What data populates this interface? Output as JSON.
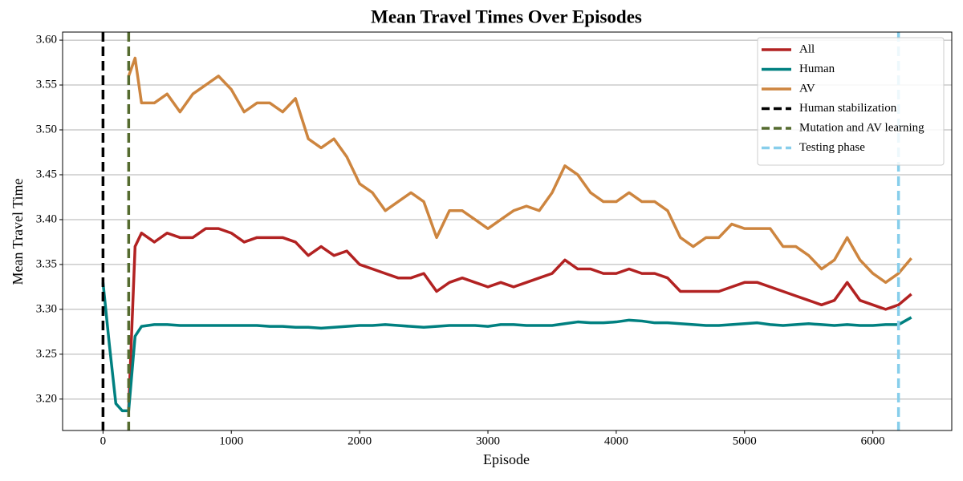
{
  "chart_data": {
    "type": "line",
    "title": "Mean Travel Times Over Episodes",
    "xlabel": "Episode",
    "ylabel": "Mean Travel Time",
    "x": [
      0,
      50,
      100,
      150,
      200,
      250,
      300,
      400,
      500,
      600,
      700,
      800,
      900,
      1000,
      1100,
      1200,
      1300,
      1400,
      1500,
      1600,
      1700,
      1800,
      1900,
      2000,
      2100,
      2200,
      2300,
      2400,
      2500,
      2600,
      2700,
      2800,
      2900,
      3000,
      3100,
      3200,
      3300,
      3400,
      3500,
      3600,
      3700,
      3800,
      3900,
      4000,
      4100,
      4200,
      4300,
      4400,
      4500,
      4600,
      4700,
      4800,
      4900,
      5000,
      5100,
      5200,
      5300,
      5400,
      5500,
      5600,
      5700,
      5800,
      5900,
      6000,
      6100,
      6200,
      6300
    ],
    "series": [
      {
        "name": "All",
        "color": "#b22222",
        "values": [
          null,
          null,
          null,
          null,
          3.19,
          3.37,
          3.385,
          3.375,
          3.385,
          3.38,
          3.38,
          3.39,
          3.39,
          3.385,
          3.375,
          3.38,
          3.38,
          3.38,
          3.375,
          3.36,
          3.37,
          3.36,
          3.365,
          3.35,
          3.345,
          3.34,
          3.335,
          3.335,
          3.34,
          3.32,
          3.33,
          3.335,
          3.33,
          3.325,
          3.33,
          3.325,
          3.33,
          3.335,
          3.34,
          3.355,
          3.345,
          3.345,
          3.34,
          3.34,
          3.345,
          3.34,
          3.34,
          3.335,
          3.32,
          3.32,
          3.32,
          3.32,
          3.325,
          3.33,
          3.33,
          3.325,
          3.32,
          3.315,
          3.31,
          3.305,
          3.31,
          3.33,
          3.31,
          3.305,
          3.3,
          3.305,
          3.317
        ]
      },
      {
        "name": "Human",
        "color": "#008080",
        "values": [
          3.33,
          3.26,
          3.195,
          3.187,
          3.187,
          3.27,
          3.281,
          3.283,
          3.283,
          3.282,
          3.282,
          3.282,
          3.282,
          3.282,
          3.282,
          3.282,
          3.281,
          3.281,
          3.28,
          3.28,
          3.279,
          3.28,
          3.281,
          3.282,
          3.282,
          3.283,
          3.282,
          3.281,
          3.28,
          3.281,
          3.282,
          3.282,
          3.282,
          3.281,
          3.283,
          3.283,
          3.282,
          3.282,
          3.282,
          3.284,
          3.286,
          3.285,
          3.285,
          3.286,
          3.288,
          3.287,
          3.285,
          3.285,
          3.284,
          3.283,
          3.282,
          3.282,
          3.283,
          3.284,
          3.285,
          3.283,
          3.282,
          3.283,
          3.284,
          3.283,
          3.282,
          3.283,
          3.282,
          3.282,
          3.283,
          3.283,
          3.291
        ]
      },
      {
        "name": "AV",
        "color": "#cd853f",
        "values": [
          null,
          null,
          null,
          null,
          3.56,
          3.58,
          3.53,
          3.53,
          3.54,
          3.52,
          3.54,
          3.55,
          3.56,
          3.545,
          3.52,
          3.53,
          3.53,
          3.52,
          3.535,
          3.49,
          3.48,
          3.49,
          3.47,
          3.44,
          3.43,
          3.41,
          3.42,
          3.43,
          3.42,
          3.38,
          3.41,
          3.41,
          3.4,
          3.39,
          3.4,
          3.41,
          3.415,
          3.41,
          3.43,
          3.46,
          3.45,
          3.43,
          3.42,
          3.42,
          3.43,
          3.42,
          3.42,
          3.41,
          3.38,
          3.37,
          3.38,
          3.38,
          3.395,
          3.39,
          3.39,
          3.39,
          3.37,
          3.37,
          3.36,
          3.345,
          3.355,
          3.38,
          3.355,
          3.34,
          3.33,
          3.34,
          3.357
        ]
      }
    ],
    "vlines": [
      {
        "name": "Human stabilization",
        "color": "#000000",
        "x": 0
      },
      {
        "name": "Mutation and AV learning",
        "color": "#556b2f",
        "x": 200
      },
      {
        "name": "Testing phase",
        "color": "#87ceeb",
        "x": 6200
      }
    ],
    "xlim": [
      -315,
      6615
    ],
    "ylim": [
      3.165,
      3.609
    ],
    "xticks": [
      0,
      1000,
      2000,
      3000,
      4000,
      5000,
      6000
    ],
    "yticks": [
      {
        "value": 3.2,
        "label": "3.20"
      },
      3.25,
      {
        "value": 3.3,
        "label": "3.30"
      },
      3.35,
      {
        "value": 3.4,
        "label": "3.40"
      },
      3.45,
      {
        "value": 3.5,
        "label": "3.50"
      },
      3.55,
      {
        "value": 3.6,
        "label": "3.60"
      }
    ],
    "grid": "y",
    "legend": "upper right"
  }
}
